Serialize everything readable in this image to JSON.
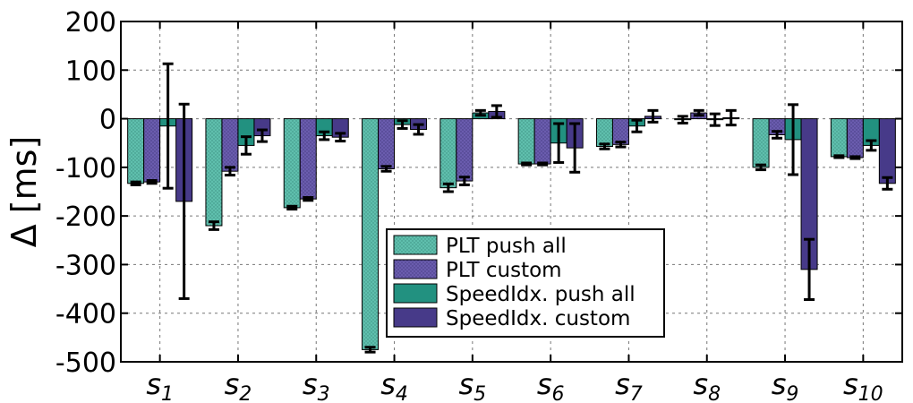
{
  "chart_data": {
    "type": "bar",
    "title": "",
    "xlabel": "",
    "ylabel": "Δ [ms]",
    "ylim": [
      -500,
      200
    ],
    "yticks": [
      200,
      100,
      0,
      -100,
      -200,
      -300,
      -400,
      -500
    ],
    "ytick_labels": [
      "200",
      "100",
      "0",
      "-100",
      "-200",
      "-300",
      "-400",
      "-500"
    ],
    "grid": true,
    "legend_position": "bottom-center",
    "categories": [
      {
        "base": "s",
        "sub": "1"
      },
      {
        "base": "s",
        "sub": "2"
      },
      {
        "base": "s",
        "sub": "3"
      },
      {
        "base": "s",
        "sub": "4"
      },
      {
        "base": "s",
        "sub": "5"
      },
      {
        "base": "s",
        "sub": "6"
      },
      {
        "base": "s",
        "sub": "7"
      },
      {
        "base": "s",
        "sub": "8"
      },
      {
        "base": "s",
        "sub": "9"
      },
      {
        "base": "s",
        "sub": "10"
      }
    ],
    "series": [
      {
        "name": "PLT push all",
        "color": "#5fbfad",
        "pattern": "dots",
        "values": [
          -133,
          -220,
          -183,
          -475,
          -142,
          -93,
          -57,
          -2,
          -100,
          -78
        ],
        "errors": [
          3,
          8,
          3,
          5,
          8,
          2,
          5,
          7,
          5,
          2
        ]
      },
      {
        "name": "PLT custom",
        "color": "#6a5cae",
        "pattern": "dots",
        "values": [
          -130,
          -108,
          -165,
          -103,
          -128,
          -93,
          -53,
          12,
          -33,
          -80
        ],
        "errors": [
          3,
          8,
          3,
          5,
          8,
          2,
          5,
          5,
          7,
          2
        ]
      },
      {
        "name": "SpeedIdx. push all",
        "color": "#229180",
        "pattern": "solid",
        "values": [
          -15,
          -55,
          -35,
          -12,
          12,
          -50,
          -15,
          -2,
          -43,
          -55
        ],
        "errors": [
          128,
          18,
          8,
          8,
          5,
          40,
          12,
          12,
          72,
          10
        ]
      },
      {
        "name": "SpeedIdx. custom",
        "color": "#473a89",
        "pattern": "solid",
        "values": [
          -170,
          -35,
          -38,
          -22,
          15,
          -60,
          5,
          2,
          -310,
          -133
        ],
        "errors": [
          200,
          12,
          8,
          10,
          12,
          50,
          12,
          15,
          62,
          12
        ]
      }
    ]
  }
}
